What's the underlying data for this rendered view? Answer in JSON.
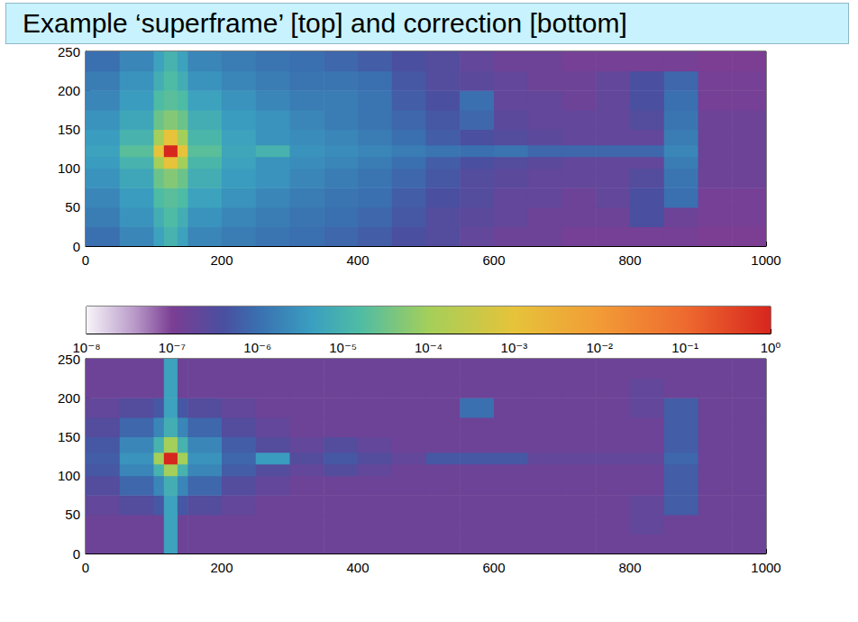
{
  "title": "Example ‘superframe’ [top] and correction [bottom]",
  "color_range": [
    1e-08,
    1
  ],
  "color_ticks": [
    {
      "value": 1e-08,
      "label": "10⁻⁸"
    },
    {
      "value": 1e-07,
      "label": "10⁻⁷"
    },
    {
      "value": 1e-06,
      "label": "10⁻⁶"
    },
    {
      "value": 1e-05,
      "label": "10⁻⁵"
    },
    {
      "value": 0.0001,
      "label": "10⁻⁴"
    },
    {
      "value": 0.001,
      "label": "10⁻³"
    },
    {
      "value": 0.01,
      "label": "10⁻²"
    },
    {
      "value": 0.1,
      "label": "10⁻¹"
    },
    {
      "value": 1,
      "label": "10⁰"
    }
  ],
  "chart_data": [
    {
      "type": "heatmap",
      "log": true,
      "xlim": [
        0,
        1000
      ],
      "xticks": [
        0,
        200,
        400,
        600,
        800,
        1000
      ],
      "ylim": [
        0,
        250
      ],
      "yticks": [
        0,
        50,
        100,
        150,
        200,
        250
      ],
      "x_bins": [
        0,
        50,
        100,
        115,
        135,
        150,
        200,
        250,
        300,
        350,
        400,
        450,
        500,
        550,
        600,
        650,
        700,
        750,
        800,
        850,
        900,
        950,
        1000
      ],
      "y_bins": [
        0,
        25,
        50,
        75,
        100,
        115,
        130,
        150,
        175,
        200,
        225,
        250
      ],
      "cells": [
        [
          1e-06,
          2e-06,
          5e-06,
          1e-05,
          5e-06,
          2e-06,
          1.5e-06,
          1.2e-06,
          1e-06,
          8e-07,
          6e-07,
          4e-07,
          3e-07,
          2e-07,
          1.5e-07,
          1.5e-07,
          1.2e-07,
          1.2e-07,
          1.2e-07,
          1.2e-07,
          1e-07,
          1e-07
        ],
        [
          1.5e-06,
          3e-06,
          8e-06,
          1.5e-05,
          8e-06,
          3e-06,
          2e-06,
          1.5e-06,
          1.2e-06,
          1e-06,
          8e-07,
          5e-07,
          3e-07,
          2.5e-07,
          2e-07,
          1.5e-07,
          1.5e-07,
          1.5e-07,
          4e-07,
          1.5e-07,
          1.2e-07,
          1.2e-07
        ],
        [
          2e-06,
          4e-06,
          1.5e-05,
          2e-05,
          1.5e-05,
          5e-06,
          3e-06,
          2e-06,
          1.5e-06,
          1.2e-06,
          1e-06,
          6e-07,
          4e-07,
          3e-07,
          2e-07,
          2e-07,
          1.5e-07,
          2e-07,
          4e-07,
          1e-06,
          1.2e-07,
          1.2e-07
        ],
        [
          3e-06,
          6e-06,
          3e-05,
          5e-05,
          3e-05,
          8e-06,
          4e-06,
          3e-06,
          2e-06,
          1.5e-06,
          1.2e-06,
          8e-07,
          5e-07,
          3e-07,
          2.5e-07,
          2e-07,
          2e-07,
          2e-07,
          3e-07,
          1.2e-06,
          1.5e-07,
          1.5e-07
        ],
        [
          4e-06,
          1e-05,
          0.0001,
          0.001,
          0.0001,
          1.2e-05,
          5e-06,
          3e-06,
          2.5e-06,
          2e-06,
          1.5e-06,
          1e-06,
          6e-07,
          4e-07,
          3e-07,
          2.5e-07,
          2e-07,
          2e-07,
          2e-07,
          1.5e-06,
          1.5e-07,
          1.5e-07
        ],
        [
          5e-06,
          2e-05,
          0.001,
          1,
          0.001,
          2e-05,
          6e-06,
          1e-05,
          3e-06,
          2.5e-06,
          2e-06,
          1.5e-06,
          1.2e-06,
          1e-06,
          1.2e-06,
          8e-07,
          8e-07,
          8e-07,
          8e-07,
          2e-06,
          1.5e-07,
          1.5e-07
        ],
        [
          4e-06,
          1e-05,
          0.0001,
          0.001,
          0.0001,
          1.2e-05,
          5e-06,
          3e-06,
          2.5e-06,
          2e-06,
          1.5e-06,
          1e-06,
          6e-07,
          4e-07,
          3e-07,
          2.5e-07,
          2e-07,
          2e-07,
          2e-07,
          1.5e-06,
          1.5e-07,
          1.5e-07
        ],
        [
          3e-06,
          6e-06,
          3e-05,
          5e-05,
          3e-05,
          8e-06,
          4e-06,
          3e-06,
          2e-06,
          1.5e-06,
          1.2e-06,
          8e-07,
          5e-07,
          8e-07,
          2.5e-07,
          2e-07,
          2e-07,
          2e-07,
          3e-07,
          1.2e-06,
          1.5e-07,
          1.5e-07
        ],
        [
          2e-06,
          4e-06,
          1.5e-05,
          2e-05,
          1.5e-05,
          5e-06,
          3e-06,
          2e-06,
          1.5e-06,
          1.5e-06,
          1.2e-06,
          6e-07,
          4e-07,
          1e-06,
          2e-07,
          2e-07,
          1.5e-07,
          2e-07,
          4e-07,
          1e-06,
          1.2e-07,
          1.2e-07
        ],
        [
          1.5e-06,
          3e-06,
          8e-06,
          1.5e-05,
          8e-06,
          3e-06,
          2e-06,
          1.5e-06,
          1.2e-06,
          1.2e-06,
          1e-06,
          5e-07,
          3e-07,
          2.5e-07,
          2e-07,
          1.5e-07,
          1.5e-07,
          2e-07,
          4e-07,
          8e-07,
          1.2e-07,
          1.2e-07
        ],
        [
          1e-06,
          2e-06,
          5e-06,
          1e-05,
          5e-06,
          2e-06,
          1.5e-06,
          1.2e-06,
          1e-06,
          8e-07,
          6e-07,
          4e-07,
          3e-07,
          2e-07,
          1.5e-07,
          1.5e-07,
          1.2e-07,
          1.2e-07,
          1.2e-07,
          1.2e-07,
          1e-07,
          1e-07
        ]
      ]
    },
    {
      "type": "heatmap",
      "log": true,
      "xlim": [
        0,
        1000
      ],
      "xticks": [
        0,
        200,
        400,
        600,
        800,
        1000
      ],
      "ylim": [
        0,
        250
      ],
      "yticks": [
        0,
        50,
        100,
        150,
        200,
        250
      ],
      "x_bins": [
        0,
        50,
        100,
        115,
        135,
        150,
        200,
        250,
        300,
        350,
        400,
        450,
        500,
        550,
        600,
        650,
        700,
        750,
        800,
        850,
        900,
        950,
        1000
      ],
      "y_bins": [
        0,
        25,
        50,
        75,
        100,
        115,
        130,
        150,
        175,
        200,
        225,
        250
      ],
      "cells": [
        [
          1.5e-07,
          1.5e-07,
          1.5e-07,
          5e-06,
          1.5e-07,
          1.5e-07,
          1.5e-07,
          1.5e-07,
          1.5e-07,
          1.5e-07,
          1.5e-07,
          1.5e-07,
          1.5e-07,
          1.5e-07,
          1.5e-07,
          1.5e-07,
          1.5e-07,
          1.5e-07,
          1.5e-07,
          1.5e-07,
          1.5e-07,
          1.5e-07
        ],
        [
          1.5e-07,
          1.5e-07,
          1.5e-07,
          5e-06,
          1.5e-07,
          1.5e-07,
          1.5e-07,
          1.5e-07,
          1.5e-07,
          1.5e-07,
          1.5e-07,
          1.5e-07,
          1.5e-07,
          1.5e-07,
          1.5e-07,
          1.5e-07,
          1.5e-07,
          1.5e-07,
          2e-07,
          1.5e-07,
          1.5e-07,
          1.5e-07
        ],
        [
          2e-07,
          3e-07,
          5e-07,
          5e-06,
          5e-07,
          3e-07,
          2e-07,
          1.5e-07,
          1.5e-07,
          1.5e-07,
          1.5e-07,
          1.5e-07,
          1.5e-07,
          1.5e-07,
          1.5e-07,
          1.5e-07,
          1.5e-07,
          1.5e-07,
          2e-07,
          6e-07,
          1.5e-07,
          1.5e-07
        ],
        [
          3e-07,
          8e-07,
          2e-06,
          8e-06,
          2e-06,
          8e-07,
          3e-07,
          2e-07,
          1.5e-07,
          1.5e-07,
          1.5e-07,
          1.5e-07,
          1.5e-07,
          1.5e-07,
          1.5e-07,
          1.5e-07,
          1.5e-07,
          1.5e-07,
          1.5e-07,
          6e-07,
          1.5e-07,
          1.5e-07
        ],
        [
          5e-07,
          2e-06,
          1e-05,
          0.0001,
          1e-05,
          2e-06,
          6e-07,
          3e-07,
          2e-07,
          3e-07,
          2e-07,
          1.5e-07,
          1.5e-07,
          1.5e-07,
          1.5e-07,
          1.5e-07,
          1.5e-07,
          1.5e-07,
          1.5e-07,
          6e-07,
          1.5e-07,
          1.5e-07
        ],
        [
          6e-07,
          3e-06,
          0.0001,
          1,
          0.0001,
          3e-06,
          8e-07,
          4e-06,
          3e-07,
          5e-07,
          3e-07,
          2e-07,
          5e-07,
          5e-07,
          5e-07,
          2e-07,
          2e-07,
          2e-07,
          2e-07,
          8e-07,
          1.5e-07,
          1.5e-07
        ],
        [
          5e-07,
          2e-06,
          1e-05,
          0.0001,
          1e-05,
          2e-06,
          6e-07,
          3e-07,
          2e-07,
          3e-07,
          2e-07,
          1.5e-07,
          1.5e-07,
          1.5e-07,
          1.5e-07,
          1.5e-07,
          1.5e-07,
          1.5e-07,
          1.5e-07,
          6e-07,
          1.5e-07,
          1.5e-07
        ],
        [
          3e-07,
          8e-07,
          2e-06,
          8e-06,
          2e-06,
          8e-07,
          3e-07,
          2e-07,
          1.5e-07,
          1.5e-07,
          1.5e-07,
          1.5e-07,
          1.5e-07,
          1.5e-07,
          1.5e-07,
          1.5e-07,
          1.5e-07,
          1.5e-07,
          1.5e-07,
          6e-07,
          1.5e-07,
          1.5e-07
        ],
        [
          2e-07,
          3e-07,
          5e-07,
          5e-06,
          5e-07,
          3e-07,
          2e-07,
          1.5e-07,
          1.5e-07,
          1.5e-07,
          1.5e-07,
          1.5e-07,
          1.5e-07,
          1e-06,
          1.5e-07,
          1.5e-07,
          1.5e-07,
          1.5e-07,
          2e-07,
          6e-07,
          1.5e-07,
          1.5e-07
        ],
        [
          1.5e-07,
          1.5e-07,
          1.5e-07,
          5e-06,
          1.5e-07,
          1.5e-07,
          1.5e-07,
          1.5e-07,
          1.5e-07,
          1.5e-07,
          1.5e-07,
          1.5e-07,
          1.5e-07,
          1.5e-07,
          1.5e-07,
          1.5e-07,
          1.5e-07,
          1.5e-07,
          2e-07,
          1.5e-07,
          1.5e-07,
          1.5e-07
        ],
        [
          1.5e-07,
          1.5e-07,
          1.5e-07,
          5e-06,
          1.5e-07,
          1.5e-07,
          1.5e-07,
          1.5e-07,
          1.5e-07,
          1.5e-07,
          1.5e-07,
          1.5e-07,
          1.5e-07,
          1.5e-07,
          1.5e-07,
          1.5e-07,
          1.5e-07,
          1.5e-07,
          1.5e-07,
          1.5e-07,
          1.5e-07,
          1.5e-07
        ]
      ]
    }
  ]
}
